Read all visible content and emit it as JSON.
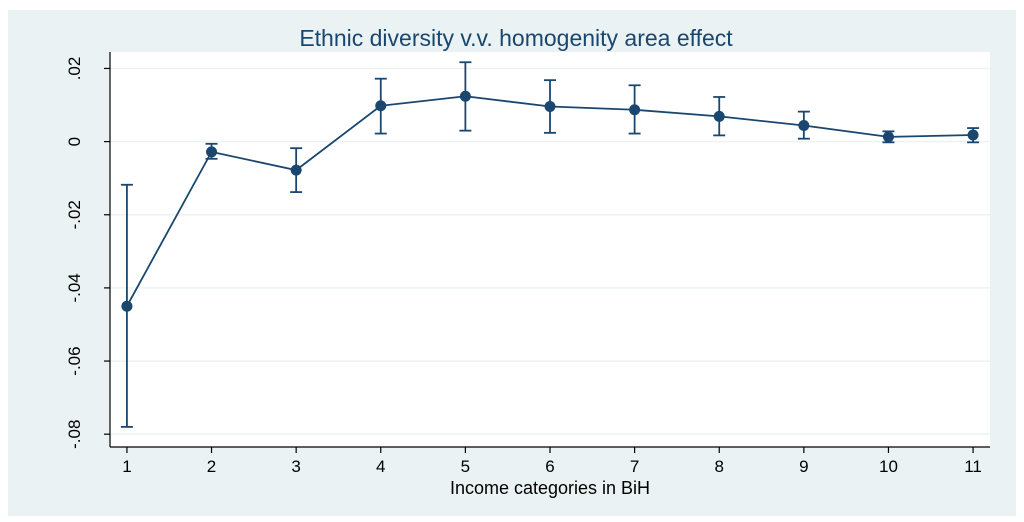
{
  "chart_data": {
    "type": "line",
    "title": "Ethnic diversity v.v. homogenity area effect",
    "xlabel": "Income categories in BiH",
    "ylabel": "",
    "x": [
      1,
      2,
      3,
      4,
      5,
      6,
      7,
      8,
      9,
      10,
      11
    ],
    "xticks": [
      1,
      2,
      3,
      4,
      5,
      6,
      7,
      8,
      9,
      10,
      11
    ],
    "yticks": [
      0.02,
      0,
      -0.02,
      -0.04,
      -0.06,
      -0.08
    ],
    "ytick_labels": [
      ".02",
      "0",
      "-.02",
      "-.04",
      "-.06",
      "-.08"
    ],
    "xlim": [
      0.8,
      11.2
    ],
    "ylim": [
      -0.0835,
      0.0245
    ],
    "grid": true,
    "series": [
      {
        "values": [
          -0.045,
          -0.0028,
          -0.0078,
          0.0098,
          0.0124,
          0.0096,
          0.0087,
          0.0069,
          0.0044,
          0.0013,
          0.0018
        ],
        "ci_low": [
          -0.078,
          -0.0047,
          -0.0138,
          0.0022,
          0.003,
          0.0024,
          0.0022,
          0.0017,
          0.0008,
          -0.0002,
          -0.0002
        ],
        "ci_high": [
          -0.0118,
          -0.0006,
          -0.0018,
          0.0172,
          0.0217,
          0.0168,
          0.0154,
          0.0122,
          0.0082,
          0.0028,
          0.0037
        ]
      }
    ],
    "colors": {
      "series": "#1a476f",
      "background": "#eaf2f3",
      "plot_area": "#ffffff"
    }
  }
}
